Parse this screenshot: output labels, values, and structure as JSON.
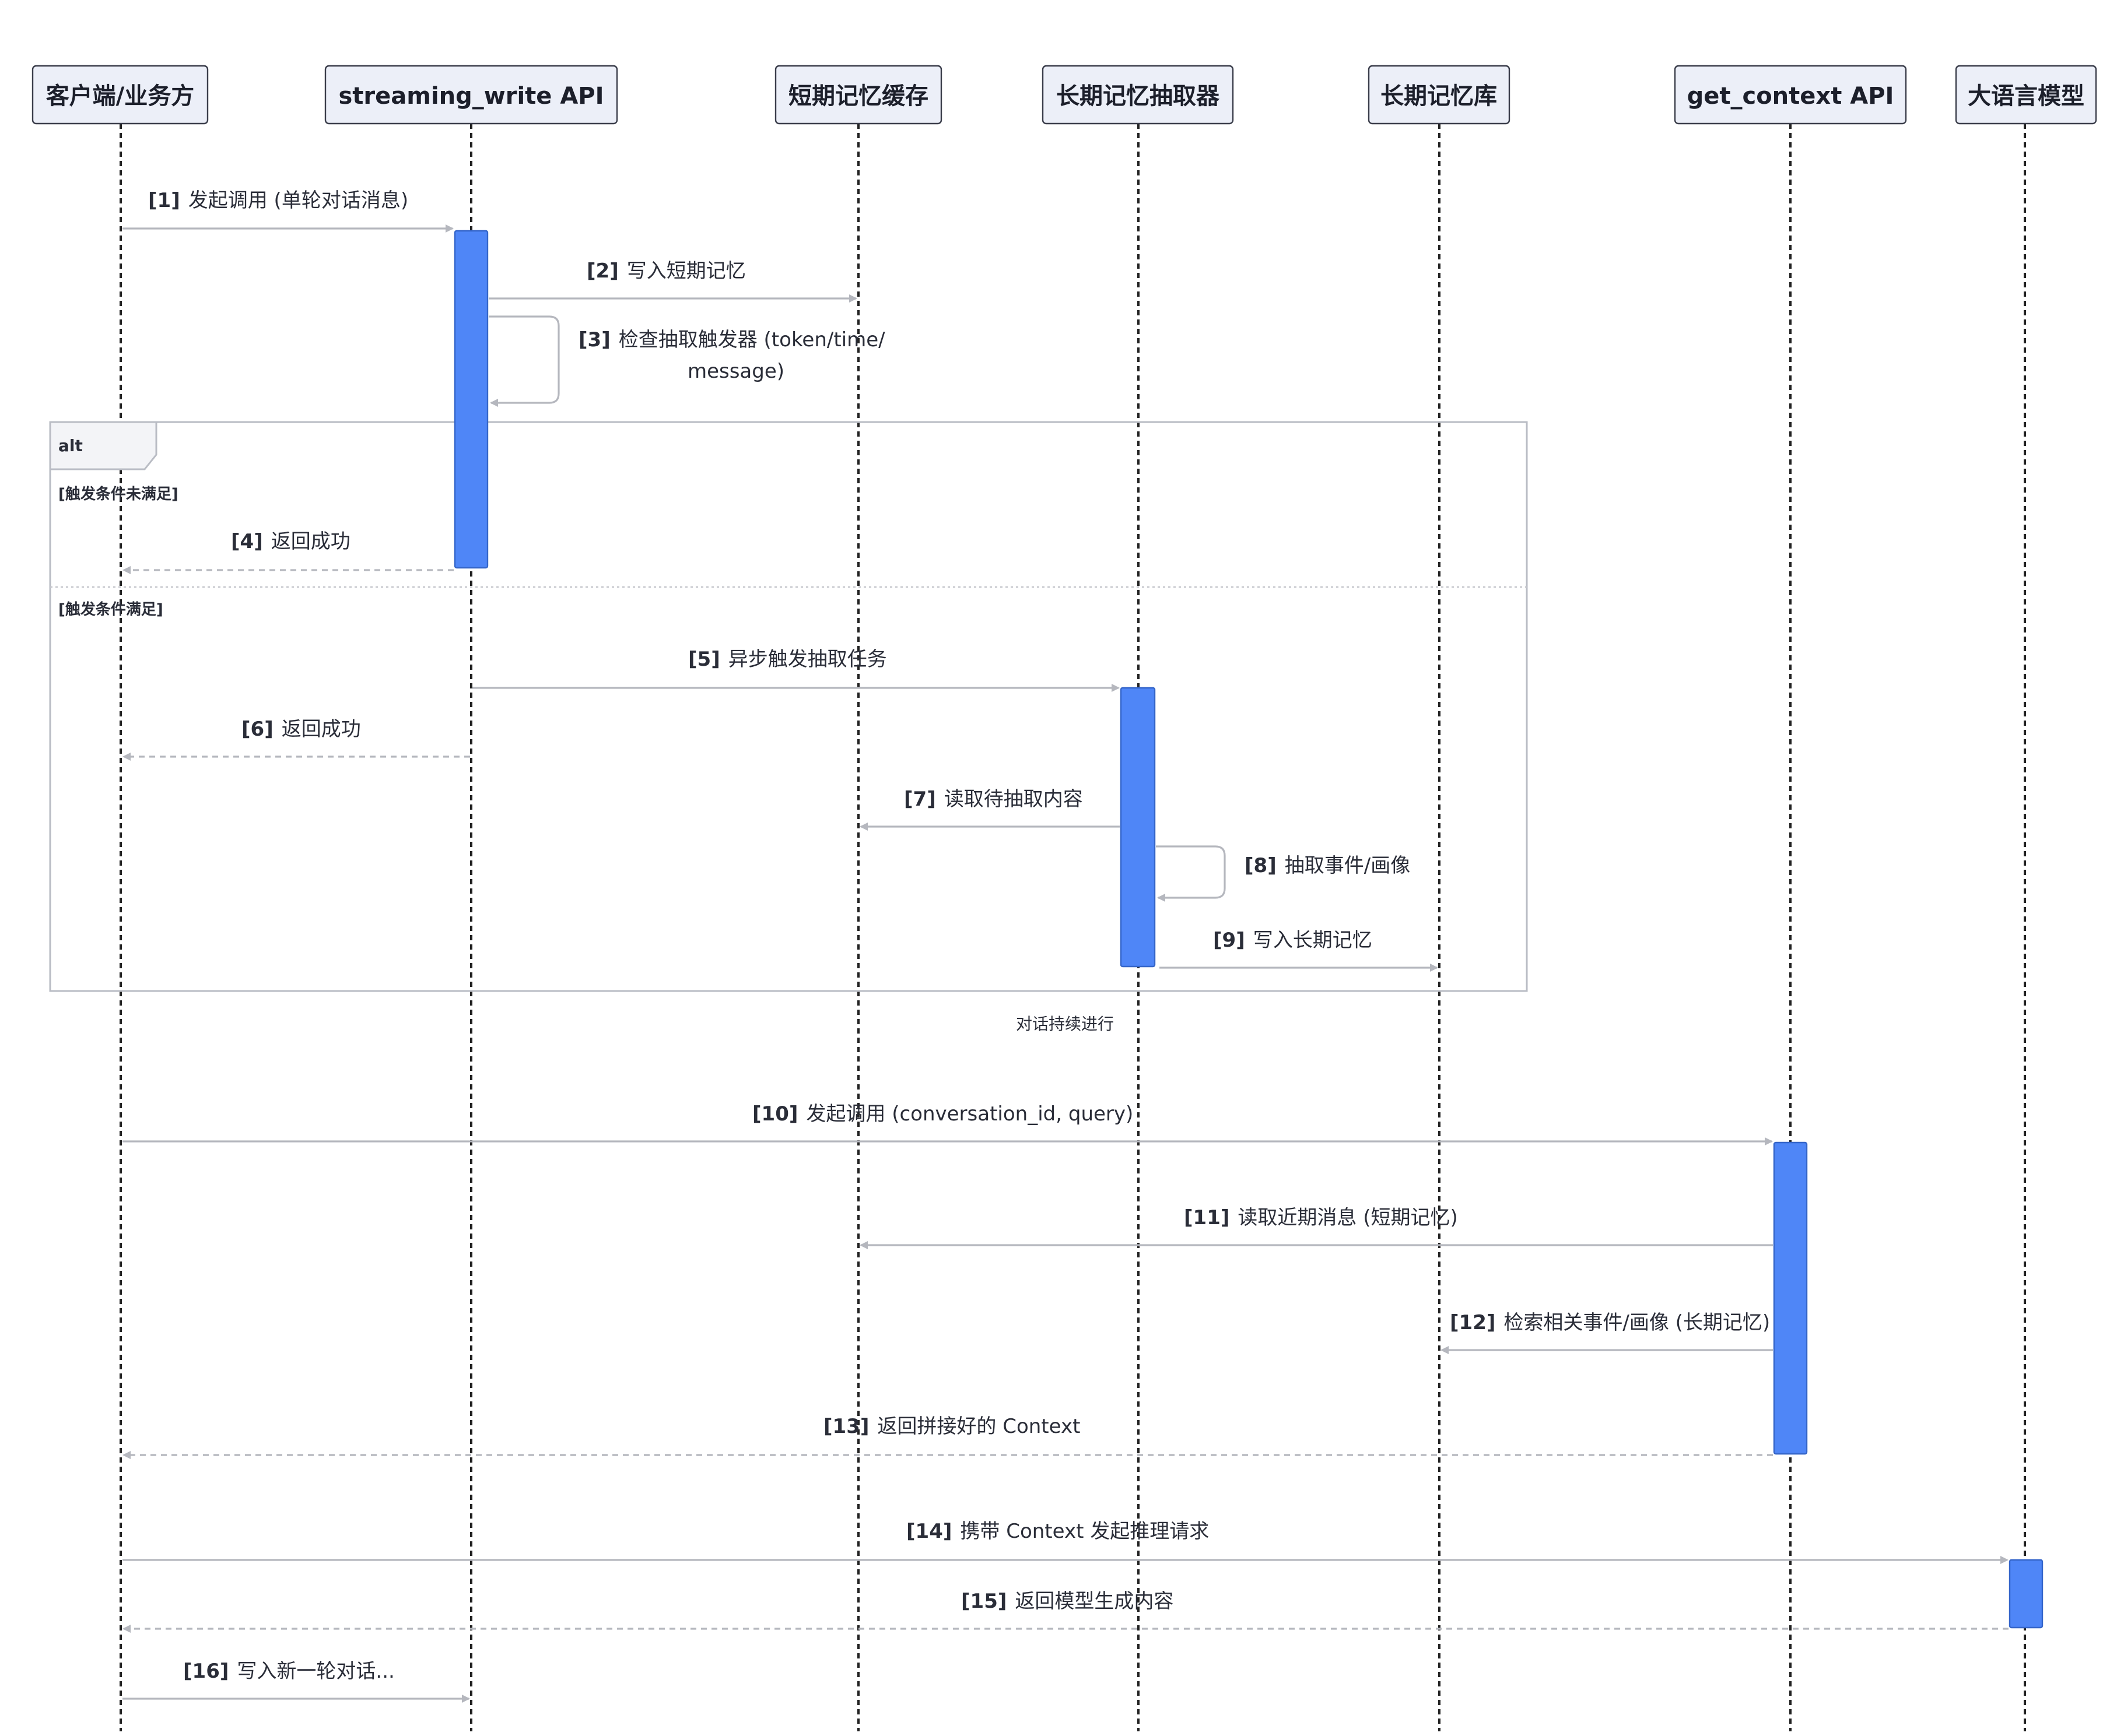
{
  "participants": [
    {
      "id": "client",
      "label": "客户端/业务方"
    },
    {
      "id": "swapi",
      "label": "streaming_write API"
    },
    {
      "id": "stcache",
      "label": "短期记忆缓存"
    },
    {
      "id": "extractor",
      "label": "长期记忆抽取器"
    },
    {
      "id": "ltstore",
      "label": "长期记忆库"
    },
    {
      "id": "gcapi",
      "label": "get_context API"
    },
    {
      "id": "llm",
      "label": "大语言模型"
    }
  ],
  "messages": [
    {
      "num": "[1]",
      "text": "发起调用 (单轮对话消息)",
      "from": "client",
      "to": "swapi",
      "style": "solid"
    },
    {
      "num": "[2]",
      "text": "写入短期记忆",
      "from": "swapi",
      "to": "stcache",
      "style": "solid"
    },
    {
      "num": "[3]",
      "text": "检查抽取触发器 (token/time/",
      "text2": "message)",
      "from": "swapi",
      "to": "swapi",
      "style": "self"
    },
    {
      "num": "[4]",
      "text": "返回成功",
      "from": "swapi",
      "to": "client",
      "style": "dashed"
    },
    {
      "num": "[5]",
      "text": "异步触发抽取任务",
      "from": "swapi",
      "to": "extractor",
      "style": "solid"
    },
    {
      "num": "[6]",
      "text": "返回成功",
      "from": "swapi",
      "to": "client",
      "style": "dashed"
    },
    {
      "num": "[7]",
      "text": "读取待抽取内容",
      "from": "extractor",
      "to": "stcache",
      "style": "solid"
    },
    {
      "num": "[8]",
      "text": "抽取事件/画像",
      "from": "extractor",
      "to": "extractor",
      "style": "self"
    },
    {
      "num": "[9]",
      "text": "写入长期记忆",
      "from": "extractor",
      "to": "ltstore",
      "style": "solid"
    },
    {
      "num": "[10]",
      "text": "发起调用 (conversation_id, query)",
      "from": "client",
      "to": "gcapi",
      "style": "solid"
    },
    {
      "num": "[11]",
      "text": "读取近期消息 (短期记忆)",
      "from": "gcapi",
      "to": "stcache",
      "style": "solid"
    },
    {
      "num": "[12]",
      "text": "检索相关事件/画像 (长期记忆)",
      "from": "gcapi",
      "to": "ltstore",
      "style": "solid"
    },
    {
      "num": "[13]",
      "text": "返回拼接好的 Context",
      "from": "gcapi",
      "to": "client",
      "style": "dashed"
    },
    {
      "num": "[14]",
      "text": "携带 Context 发起推理请求",
      "from": "client",
      "to": "llm",
      "style": "solid"
    },
    {
      "num": "[15]",
      "text": "返回模型生成内容",
      "from": "llm",
      "to": "client",
      "style": "dashed"
    },
    {
      "num": "[16]",
      "text": "写入新一轮对话...",
      "from": "client",
      "to": "swapi",
      "style": "solid"
    }
  ],
  "alt_frame": {
    "label": "alt",
    "guard1": "[触发条件未满足]",
    "guard2": "[触发条件满足]"
  },
  "note": "对话持续进行",
  "colors": {
    "activation": "#4f86f7",
    "participant_fill": "#eceff8",
    "arrow": "#b5b7be"
  }
}
